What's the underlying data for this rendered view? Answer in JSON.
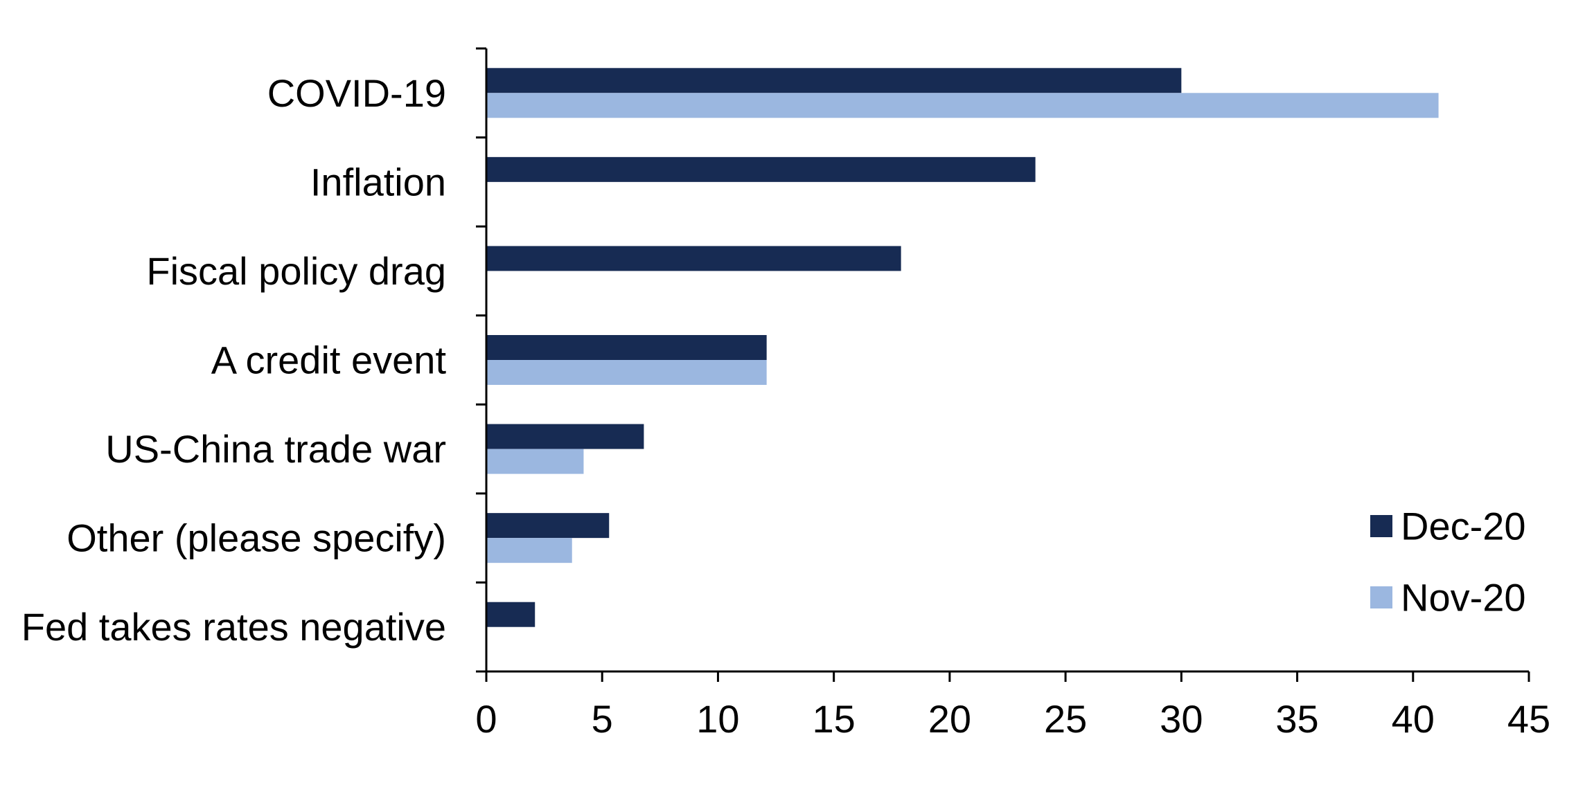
{
  "chart_data": {
    "type": "bar",
    "orientation": "horizontal",
    "categories": [
      "COVID-19",
      "Inflation",
      "Fiscal policy drag",
      "A credit event",
      "US-China trade war",
      "Other (please specify)",
      "Fed takes rates negative"
    ],
    "series": [
      {
        "name": "Dec-20",
        "color": "#172b53",
        "values": [
          30,
          23.7,
          17.9,
          12.1,
          6.8,
          5.3,
          2.1
        ]
      },
      {
        "name": "Nov-20",
        "color": "#9bb7e0",
        "values": [
          41.1,
          null,
          null,
          12.1,
          4.2,
          3.7,
          null
        ]
      }
    ],
    "xlim": [
      0,
      45
    ],
    "xticks": [
      "0",
      "5",
      "10",
      "15",
      "20",
      "25",
      "30",
      "35",
      "40",
      "45"
    ],
    "grid": false,
    "legend_position": "bottom-right",
    "title": "",
    "xlabel": "",
    "ylabel": ""
  }
}
